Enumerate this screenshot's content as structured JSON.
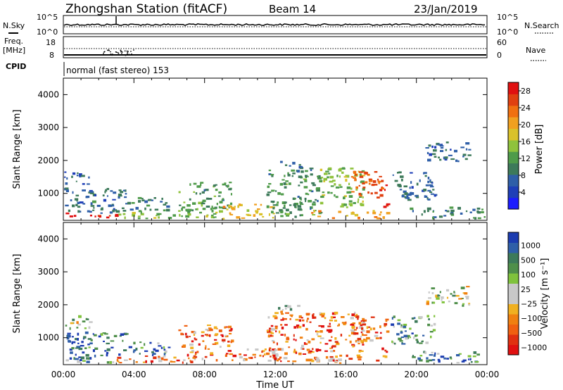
{
  "header": {
    "station_title": "Zhongshan Station (fitACF)",
    "beam": "Beam 14",
    "date": "23/Jan/2019"
  },
  "strip_panels": {
    "nsky": {
      "label": "N.Sky",
      "ticks": [
        "10^5",
        "10^0"
      ]
    },
    "nsearch": {
      "label": "N.Search",
      "ticks": [
        "10^5",
        "10^0"
      ]
    },
    "freq": {
      "label_line1": "Freq.",
      "label_line2": "[MHz]",
      "ticks": [
        "18",
        "8"
      ]
    },
    "nave": {
      "label": "Nave",
      "ticks": [
        "60",
        "0"
      ]
    },
    "cpid": {
      "label": "CPID",
      "mode_text": "normal (fast stereo) 153"
    }
  },
  "chart_data": [
    {
      "type": "heatmap",
      "title": "",
      "xlabel": "",
      "ylabel": "Slant Range [km]",
      "xlim": [
        0,
        24
      ],
      "ylim": [
        180,
        4500
      ],
      "y_ticks": [
        "1000",
        "2000",
        "3000",
        "4000"
      ],
      "colorbar": {
        "label": "Power [dB]",
        "ticks": [
          "4",
          "8",
          "12",
          "16",
          "20",
          "24",
          "28"
        ],
        "range": [
          0,
          30
        ],
        "colors": [
          "#1c1cff",
          "#1f3fb8",
          "#2f5fa8",
          "#3d7a5a",
          "#4f9b4a",
          "#8fc23c",
          "#d9c12a",
          "#f0a020",
          "#f07010",
          "#e04010",
          "#e01010"
        ]
      },
      "echo_regions": [
        {
          "t0": 0.0,
          "t1": 3.0,
          "r0": 200,
          "r1": 420,
          "level": 27
        },
        {
          "t0": 0.0,
          "t1": 3.5,
          "r0": 400,
          "r1": 1200,
          "level": 8
        },
        {
          "t0": 0.0,
          "t1": 1.5,
          "r0": 1300,
          "r1": 1700,
          "level": 7
        },
        {
          "t0": 3.0,
          "t1": 9.0,
          "r0": 220,
          "r1": 500,
          "level": 14
        },
        {
          "t0": 3.5,
          "t1": 6.0,
          "r0": 500,
          "r1": 900,
          "level": 9
        },
        {
          "t0": 6.5,
          "t1": 9.5,
          "r0": 500,
          "r1": 1400,
          "level": 11
        },
        {
          "t0": 9.0,
          "t1": 12.0,
          "r0": 250,
          "r1": 700,
          "level": 19
        },
        {
          "t0": 11.5,
          "t1": 14.5,
          "r0": 300,
          "r1": 1800,
          "level": 11
        },
        {
          "t0": 12.0,
          "t1": 13.5,
          "r0": 1800,
          "r1": 2000,
          "level": 7
        },
        {
          "t0": 14.0,
          "t1": 18.5,
          "r0": 250,
          "r1": 500,
          "level": 20
        },
        {
          "t0": 14.5,
          "t1": 17.0,
          "r0": 600,
          "r1": 1800,
          "level": 14
        },
        {
          "t0": 16.2,
          "t1": 18.3,
          "r0": 900,
          "r1": 1700,
          "level": 25
        },
        {
          "t0": 17.8,
          "t1": 18.3,
          "r0": 550,
          "r1": 750,
          "level": 28
        },
        {
          "t0": 18.5,
          "t1": 21.0,
          "r0": 800,
          "r1": 1700,
          "level": 8
        },
        {
          "t0": 20.5,
          "t1": 23.0,
          "r0": 2000,
          "r1": 2600,
          "level": 7
        },
        {
          "t0": 19.5,
          "t1": 24.0,
          "r0": 250,
          "r1": 600,
          "level": 10
        }
      ]
    },
    {
      "type": "heatmap",
      "title": "",
      "xlabel": "Time UT",
      "ylabel": "Slant Range [km]",
      "xlim": [
        0,
        24
      ],
      "ylim": [
        180,
        4500
      ],
      "x_ticks": [
        "00:00",
        "04:00",
        "08:00",
        "12:00",
        "16:00",
        "20:00",
        "00:00"
      ],
      "y_ticks": [
        "1000",
        "2000",
        "3000",
        "4000"
      ],
      "colorbar": {
        "label": "Velocity [m s⁻¹]",
        "ticks": [
          "1000",
          "500",
          "100",
          "25",
          "−25",
          "−100",
          "−500",
          "−1000"
        ],
        "colors": [
          "#1c3cb0",
          "#2f5fa8",
          "#3d7a5a",
          "#4f8f4a",
          "#7fc23c",
          "#c8c8c8",
          "#c8c8c8",
          "#f0b020",
          "#f08010",
          "#f06010",
          "#e03010",
          "#e01010"
        ]
      },
      "echo_regions": [
        {
          "t0": 0.0,
          "t1": 3.0,
          "r0": 200,
          "r1": 420,
          "level": 3
        },
        {
          "t0": 0.0,
          "t1": 3.5,
          "r0": 400,
          "r1": 1200,
          "level": 1
        },
        {
          "t0": 0.0,
          "t1": 1.5,
          "r0": 1300,
          "r1": 1700,
          "level": 5
        },
        {
          "t0": 3.0,
          "t1": 9.0,
          "r0": 220,
          "r1": 500,
          "level": 8
        },
        {
          "t0": 3.5,
          "t1": 6.0,
          "r0": 500,
          "r1": 900,
          "level": 2
        },
        {
          "t0": 6.5,
          "t1": 9.5,
          "r0": 500,
          "r1": 1400,
          "level": 9
        },
        {
          "t0": 9.0,
          "t1": 12.0,
          "r0": 250,
          "r1": 700,
          "level": 8
        },
        {
          "t0": 11.5,
          "t1": 14.5,
          "r0": 300,
          "r1": 1800,
          "level": 9
        },
        {
          "t0": 12.0,
          "t1": 13.5,
          "r0": 1800,
          "r1": 2000,
          "level": 5
        },
        {
          "t0": 14.0,
          "t1": 18.5,
          "r0": 250,
          "r1": 500,
          "level": 8
        },
        {
          "t0": 14.5,
          "t1": 17.0,
          "r0": 600,
          "r1": 1800,
          "level": 9
        },
        {
          "t0": 16.2,
          "t1": 18.3,
          "r0": 900,
          "r1": 1700,
          "level": 8
        },
        {
          "t0": 17.8,
          "t1": 18.3,
          "r0": 550,
          "r1": 750,
          "level": 10
        },
        {
          "t0": 18.5,
          "t1": 21.0,
          "r0": 800,
          "r1": 1700,
          "level": 3
        },
        {
          "t0": 20.5,
          "t1": 23.0,
          "r0": 2000,
          "r1": 2600,
          "level": 5
        },
        {
          "t0": 19.5,
          "t1": 24.0,
          "r0": 250,
          "r1": 600,
          "level": 2
        }
      ]
    }
  ]
}
